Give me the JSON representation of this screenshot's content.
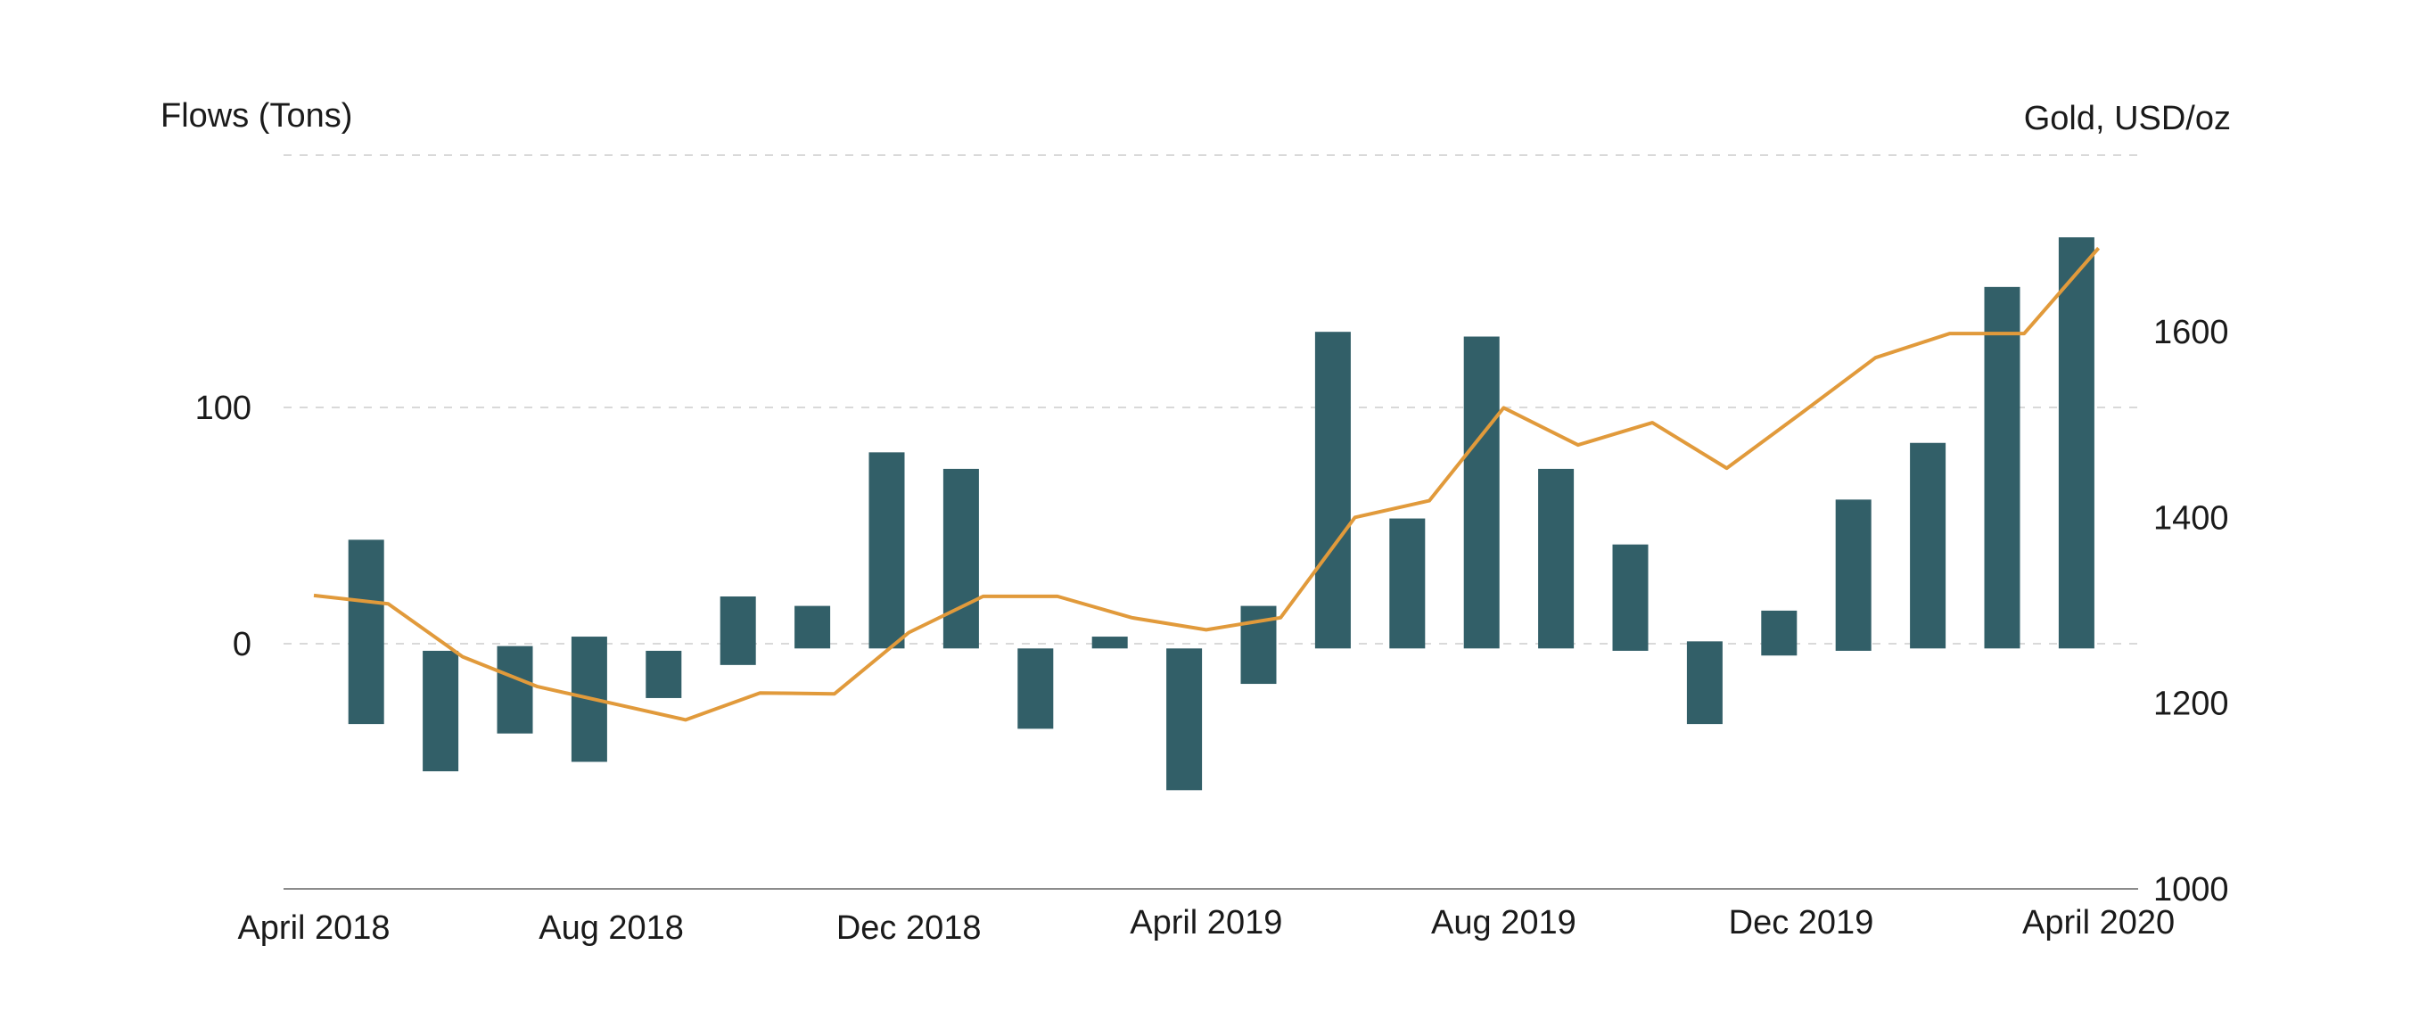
{
  "chart_data": {
    "type": "bar+line",
    "title": "",
    "left_axis": {
      "label": "Flows (Tons)",
      "ticks": [
        0,
        100
      ],
      "ticks_label": [
        "0",
        "100"
      ],
      "range": [
        -102,
        205
      ]
    },
    "right_axis": {
      "label": "Gold, USD/oz",
      "ticks": [
        1000,
        1200,
        1400,
        1600
      ],
      "ticks_label": [
        "1000",
        "1200",
        "1400",
        "1600"
      ],
      "range": [
        1000,
        1785
      ]
    },
    "x_ticks": [
      {
        "index": 0,
        "label": "April 2018"
      },
      {
        "index": 4,
        "label": "Aug 2018"
      },
      {
        "index": 8,
        "label": "Dec 2018"
      },
      {
        "index": 12,
        "label": "April 2019"
      },
      {
        "index": 16,
        "label": "Aug 2019"
      },
      {
        "index": 20,
        "label": "Dec 2019"
      },
      {
        "index": 24,
        "label": "April 2020"
      }
    ],
    "bar_series": {
      "name": "Flows (Tons)",
      "color": "#325f68",
      "floating_bars": [
        {
          "low": -34,
          "high": 44
        },
        {
          "low": -54,
          "high": -3
        },
        {
          "low": -38,
          "high": -1
        },
        {
          "low": -50,
          "high": 3
        },
        {
          "low": -23,
          "high": -3
        },
        {
          "low": -9,
          "high": 20
        },
        {
          "low": -2,
          "high": 16
        },
        {
          "low": -2,
          "high": 81
        },
        {
          "low": -2,
          "high": 74
        },
        {
          "low": -36,
          "high": -2
        },
        {
          "low": -2,
          "high": 3
        },
        {
          "low": -62,
          "high": -2
        },
        {
          "low": -17,
          "high": 16
        },
        {
          "low": -2,
          "high": 132
        },
        {
          "low": -2,
          "high": 53
        },
        {
          "low": -2,
          "high": 130
        },
        {
          "low": -2,
          "high": 74
        },
        {
          "low": -3,
          "high": 42
        },
        {
          "low": -34,
          "high": 1
        },
        {
          "low": -5,
          "high": 14
        },
        {
          "low": -3,
          "high": 61
        },
        {
          "low": -2,
          "high": 85
        },
        {
          "low": -2,
          "high": 151
        },
        {
          "low": -2,
          "high": 172
        }
      ]
    },
    "line_series": {
      "name": "Gold, USD/oz",
      "color": "#e19a3b",
      "values": [
        1316,
        1307,
        1250,
        1218,
        1200,
        1182,
        1211,
        1210,
        1276,
        1315,
        1315,
        1292,
        1279,
        1292,
        1400,
        1418,
        1518,
        1478,
        1502,
        1453,
        1512,
        1572,
        1598,
        1598,
        1690
      ]
    },
    "grid": true,
    "colors": {
      "bars": "#325f68",
      "line": "#e19a3b",
      "grid": "#d9d9d9",
      "baseline": "#8c8c8c",
      "text": "#1a1a1a"
    }
  }
}
